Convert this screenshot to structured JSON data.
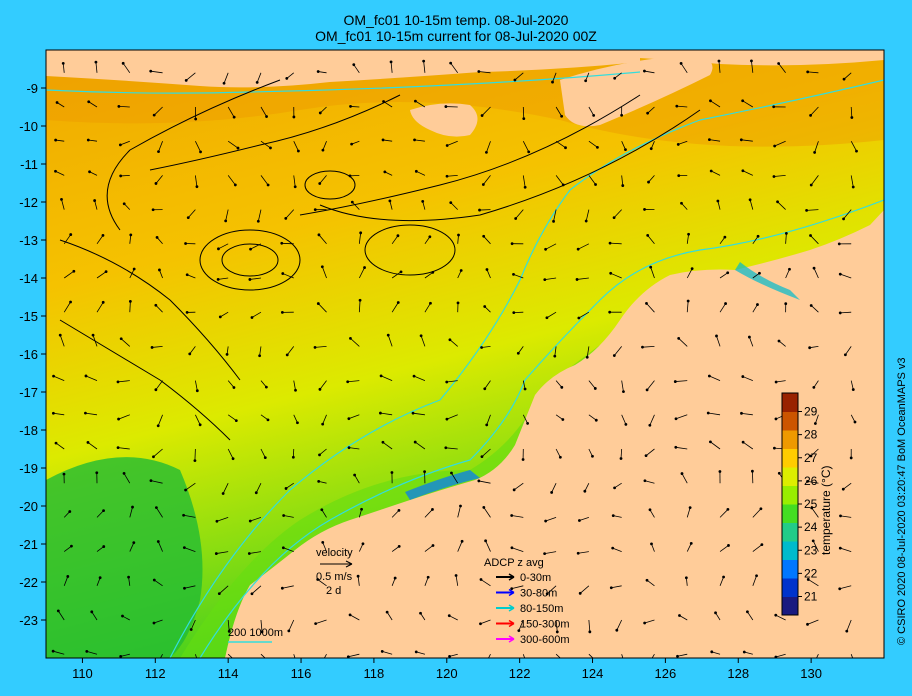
{
  "title_line1": "OM_fc01 10-15m temp. 08-Jul-2020",
  "title_line2": "OM_fc01 10-15m current for 08-Jul-2020 00Z",
  "credit": "© CSIRO 2020  08-Jul-2020 03:20:47 BoM OceanMAPS v3",
  "axes": {
    "x_ticks": [
      "110",
      "112",
      "114",
      "116",
      "118",
      "120",
      "122",
      "124",
      "126",
      "128",
      "130"
    ],
    "y_ticks": [
      "-9",
      "-10",
      "-11",
      "-12",
      "-13",
      "-14",
      "-15",
      "-16",
      "-17",
      "-18",
      "-19",
      "-20",
      "-21",
      "-22",
      "-23"
    ],
    "xlim": [
      109,
      132
    ],
    "ylim": [
      -24,
      -8
    ]
  },
  "colorbar": {
    "label": "temperature (°C)",
    "ticks": [
      "21",
      "22",
      "23",
      "24",
      "25",
      "26",
      "27",
      "28",
      "29"
    ],
    "range": [
      20.2,
      29.8
    ],
    "colors": [
      "#1a1a80",
      "#0033cc",
      "#0077ff",
      "#00bbcc",
      "#22cc88",
      "#44dd22",
      "#99ee00",
      "#ddee00",
      "#ffcc00",
      "#ee9900",
      "#cc5500",
      "#992200"
    ]
  },
  "velocity_legend": {
    "title": "velocity",
    "speed": "0.5 m/s",
    "duration": "2 d"
  },
  "adcp_legend": {
    "title": "ADCP z avg",
    "items": [
      {
        "label": "0-30m",
        "color": "#000000"
      },
      {
        "label": "30-80m",
        "color": "#0000ff"
      },
      {
        "label": "80-150m",
        "color": "#00cccc"
      },
      {
        "label": "150-300m",
        "color": "#ff0000"
      },
      {
        "label": "300-600m",
        "color": "#ff00ff"
      }
    ]
  },
  "isobath_legend": {
    "label": "200  1000m",
    "color": "#33dddd"
  },
  "colors": {
    "frame": "#33ccff",
    "land": "#ffcc99",
    "isobath": "#33dddd"
  }
}
